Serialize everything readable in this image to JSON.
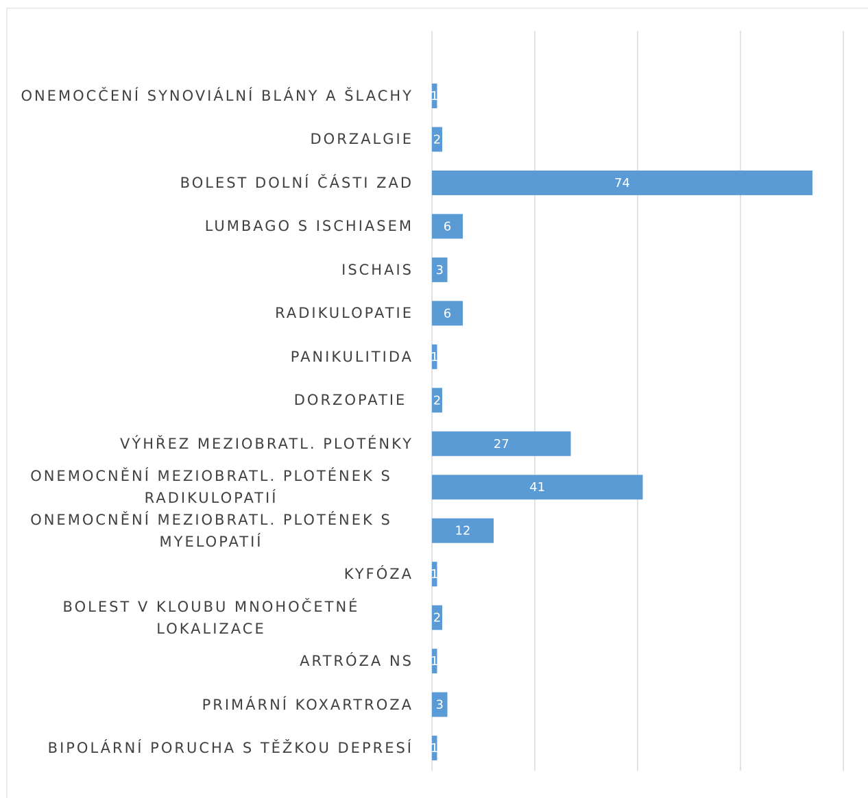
{
  "chart_data": {
    "type": "bar",
    "orientation": "horizontal",
    "categories": [
      "ONEMOCČENÍ SYNOVIÁLNÍ BLÁNY A ŠLACHY",
      "DORZALGIE",
      "BOLEST DOLNÍ ČÁSTI ZAD",
      "LUMBAGO S ISCHIASEM",
      "ISCHAIS",
      "RADIKULOPATIE",
      "PANIKULITIDA",
      "DORZOPATIE ",
      "VÝHŘEZ MEZIOBRATL. PLOTÉNKY",
      "ONEMOCNĚNÍ MEZIOBRATL. PLOTÉNEK S RADIKULOPATIÍ",
      "ONEMOCNĚNÍ MEZIOBRATL. PLOTÉNEK S MYELOPATIÍ",
      "KYFÓZA",
      "BOLEST V KLOUBU MNOHOČETNÉ LOKALIZACE",
      "ARTRÓZA NS",
      "PRIMÁRNÍ KOXARTROZA",
      "BIPOLÁRNÍ PORUCHA S TĚŽKOU DEPRESÍ"
    ],
    "values": [
      1,
      2,
      74,
      6,
      3,
      6,
      1,
      2,
      27,
      41,
      12,
      1,
      2,
      1,
      3,
      1
    ],
    "color": "#5b9bd5",
    "xlim": [
      0,
      80
    ],
    "xticks": [
      0,
      20,
      40,
      60,
      80
    ],
    "grid": true
  }
}
